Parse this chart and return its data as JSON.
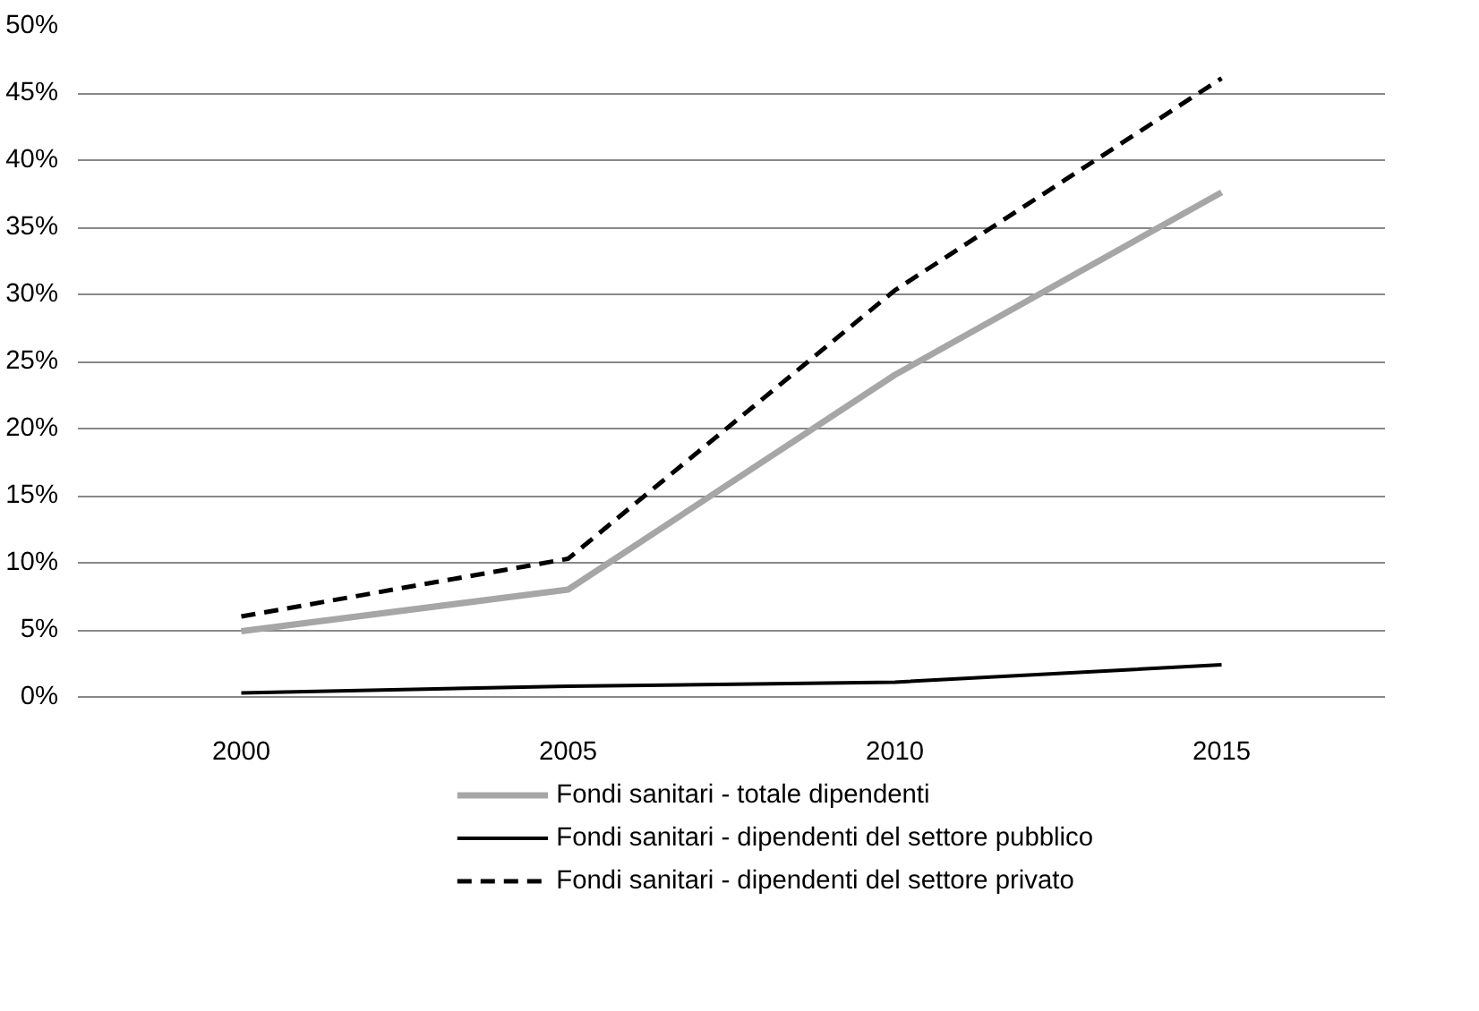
{
  "chart_data": {
    "type": "line",
    "categories": [
      "2000",
      "2005",
      "2010",
      "2015"
    ],
    "series": [
      {
        "name": "Fondi sanitari - totale dipendenti",
        "color": "#a6a6a6",
        "line_style": "solid",
        "values": [
          4.9,
          8.0,
          24.0,
          37.6
        ]
      },
      {
        "name": "Fondi sanitari - dipendenti del settore pubblico",
        "color": "#000000",
        "line_style": "solid",
        "values": [
          0.3,
          0.8,
          1.1,
          2.4
        ]
      },
      {
        "name": "Fondi sanitari - dipendenti del settore privato",
        "color": "#000000",
        "line_style": "dashed",
        "values": [
          6.0,
          10.3,
          30.3,
          46.1
        ]
      }
    ],
    "ylim": [
      0,
      50
    ],
    "yticks": [
      {
        "value": 0,
        "label": "0%"
      },
      {
        "value": 5,
        "label": "5%"
      },
      {
        "value": 10,
        "label": "10%"
      },
      {
        "value": 15,
        "label": "15%"
      },
      {
        "value": 20,
        "label": "20%"
      },
      {
        "value": 25,
        "label": "25%"
      },
      {
        "value": 30,
        "label": "30%"
      },
      {
        "value": 35,
        "label": "35%"
      },
      {
        "value": 40,
        "label": "40%"
      },
      {
        "value": 45,
        "label": "45%"
      },
      {
        "value": 50,
        "label": "50%"
      }
    ],
    "grid": "y",
    "legend": "bottom",
    "marker": "none"
  }
}
